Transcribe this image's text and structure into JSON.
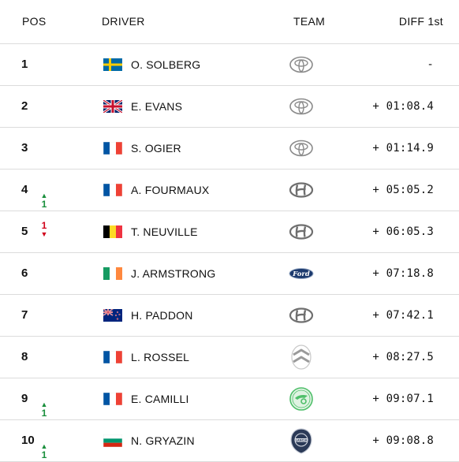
{
  "headers": {
    "pos": "POS",
    "driver": "DRIVER",
    "team": "TEAM",
    "diff": "DIFF 1st"
  },
  "colors": {
    "up": "#1a8f3c",
    "down": "#d0021b",
    "divider": "#dcdcdc"
  },
  "rows": [
    {
      "pos": "1",
      "change": null,
      "flag": "sweden-flag",
      "driver": "O. SOLBERG",
      "team_logo": "toyota-logo",
      "diff": "-"
    },
    {
      "pos": "2",
      "change": null,
      "flag": "uk-flag",
      "driver": "E. EVANS",
      "team_logo": "toyota-logo",
      "diff": "+ 01:08.4"
    },
    {
      "pos": "3",
      "change": null,
      "flag": "france-flag",
      "driver": "S. OGIER",
      "team_logo": "toyota-logo",
      "diff": "+ 01:14.9"
    },
    {
      "pos": "4",
      "change": {
        "dir": "up",
        "value": "1"
      },
      "flag": "france-flag",
      "driver": "A. FOURMAUX",
      "team_logo": "hyundai-logo",
      "diff": "+ 05:05.2"
    },
    {
      "pos": "5",
      "change": {
        "dir": "down",
        "value": "1"
      },
      "flag": "belgium-flag",
      "driver": "T. NEUVILLE",
      "team_logo": "hyundai-logo",
      "diff": "+ 06:05.3"
    },
    {
      "pos": "6",
      "change": null,
      "flag": "ireland-flag",
      "driver": "J. ARMSTRONG",
      "team_logo": "ford-logo",
      "diff": "+ 07:18.8"
    },
    {
      "pos": "7",
      "change": null,
      "flag": "new-zealand-flag",
      "driver": "H. PADDON",
      "team_logo": "hyundai-logo",
      "diff": "+ 07:42.1"
    },
    {
      "pos": "8",
      "change": null,
      "flag": "france-flag",
      "driver": "L. ROSSEL",
      "team_logo": "citroen-logo",
      "diff": "+ 08:27.5"
    },
    {
      "pos": "9",
      "change": {
        "dir": "up",
        "value": "1"
      },
      "flag": "france-flag",
      "driver": "E. CAMILLI",
      "team_logo": "skoda-logo",
      "diff": "+ 09:07.1"
    },
    {
      "pos": "10",
      "change": {
        "dir": "up",
        "value": "1"
      },
      "flag": "bulgaria-flag",
      "driver": "N. GRYAZIN",
      "team_logo": "lancia-logo",
      "diff": "+ 09:08.8"
    }
  ]
}
